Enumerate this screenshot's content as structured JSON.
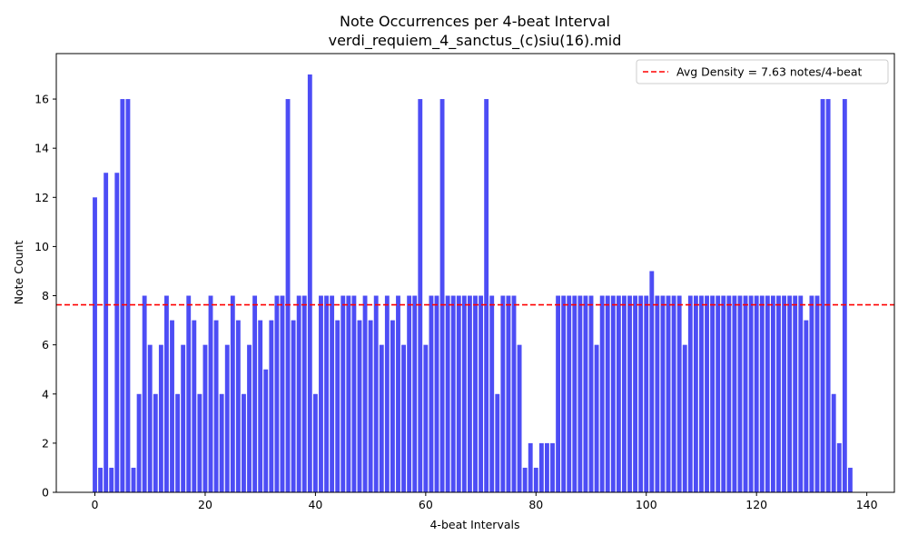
{
  "chart_data": {
    "type": "bar",
    "title": "Note Occurrences per 4-beat Interval",
    "subtitle": "verdi_requiem_4_sanctus_(c)siu(16).mid",
    "xlabel": "4-beat Intervals",
    "ylabel": "Note Count",
    "xlim": [
      -7,
      145
    ],
    "ylim": [
      0,
      17.85
    ],
    "x_ticks": [
      0,
      20,
      40,
      60,
      80,
      100,
      120,
      140
    ],
    "y_ticks": [
      0,
      2,
      4,
      6,
      8,
      10,
      12,
      14,
      16
    ],
    "bar_color": "#4d4df5",
    "avg_line": {
      "value": 7.63,
      "label": "Avg Density = 7.63 notes/4-beat",
      "color": "#ff0000"
    },
    "legend_position": "top-right",
    "grid": false,
    "values": [
      12,
      1,
      13,
      1,
      13,
      16,
      16,
      1,
      4,
      8,
      6,
      4,
      6,
      8,
      7,
      4,
      6,
      8,
      7,
      4,
      6,
      8,
      7,
      4,
      6,
      8,
      7,
      4,
      6,
      8,
      7,
      5,
      7,
      8,
      8,
      16,
      7,
      8,
      8,
      17,
      4,
      8,
      8,
      8,
      7,
      8,
      8,
      8,
      7,
      8,
      7,
      8,
      6,
      8,
      7,
      8,
      6,
      8,
      8,
      16,
      6,
      8,
      8,
      16,
      8,
      8,
      8,
      8,
      8,
      8,
      8,
      16,
      8,
      4,
      8,
      8,
      8,
      6,
      1,
      2,
      1,
      2,
      2,
      2,
      8,
      8,
      8,
      8,
      8,
      8,
      8,
      6,
      8,
      8,
      8,
      8,
      8,
      8,
      8,
      8,
      8,
      9,
      8,
      8,
      8,
      8,
      8,
      6,
      8,
      8,
      8,
      8,
      8,
      8,
      8,
      8,
      8,
      8,
      8,
      8,
      8,
      8,
      8,
      8,
      8,
      8,
      8,
      8,
      8,
      7,
      8,
      8,
      16,
      16,
      4,
      2,
      16,
      1
    ]
  }
}
